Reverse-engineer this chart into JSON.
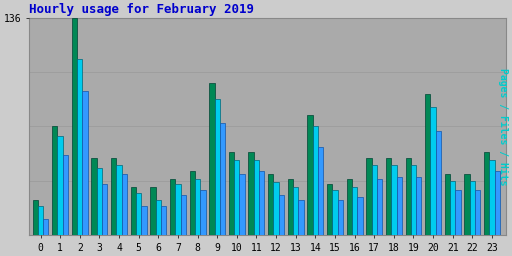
{
  "title": "Hourly usage for February 2019",
  "ylabel": "Pages / Files / Hits",
  "hours": [
    0,
    1,
    2,
    3,
    4,
    5,
    6,
    7,
    8,
    9,
    10,
    11,
    12,
    13,
    14,
    15,
    16,
    17,
    18,
    19,
    20,
    21,
    22,
    23
  ],
  "green": [
    22,
    68,
    136,
    48,
    48,
    30,
    30,
    35,
    40,
    95,
    52,
    52,
    38,
    35,
    75,
    32,
    35,
    48,
    48,
    48,
    88,
    38,
    38,
    52
  ],
  "cyan": [
    18,
    62,
    110,
    42,
    44,
    26,
    22,
    32,
    35,
    85,
    47,
    47,
    33,
    30,
    68,
    28,
    30,
    44,
    44,
    44,
    80,
    34,
    34,
    47
  ],
  "blue": [
    10,
    50,
    90,
    32,
    38,
    18,
    18,
    25,
    28,
    70,
    38,
    40,
    25,
    22,
    55,
    22,
    24,
    35,
    36,
    36,
    65,
    28,
    28,
    40
  ],
  "green_color": "#008855",
  "cyan_color": "#00ccee",
  "blue_color": "#3399ff",
  "bg_color": "#cccccc",
  "plot_bg_color": "#aaaaaa",
  "title_color": "#0000cc",
  "ylabel_color": "#00cccc",
  "ymax": 136,
  "ytick_val": 136,
  "grid_color": "#999999",
  "bar_width": 0.27,
  "figsize": [
    5.12,
    2.56
  ],
  "dpi": 100
}
